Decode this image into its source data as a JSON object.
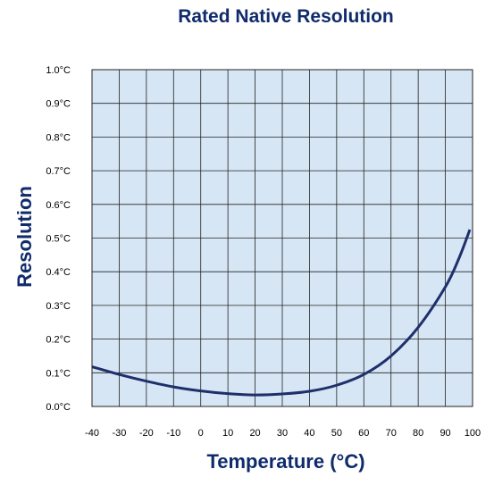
{
  "chart_data": {
    "type": "line",
    "title": "Rated Native Resolution",
    "xlabel": "Temperature (°C)",
    "ylabel": "Resolution",
    "xlim": [
      -40,
      100
    ],
    "ylim": [
      0.0,
      1.0
    ],
    "x_ticks": [
      -40,
      -30,
      -20,
      -10,
      0,
      10,
      20,
      30,
      40,
      50,
      60,
      70,
      80,
      90,
      100
    ],
    "x_tick_labels": [
      "-40",
      "-30",
      "-20",
      "-10",
      "0",
      "10",
      "20",
      "30",
      "40",
      "50",
      "60",
      "70",
      "80",
      "90",
      "100"
    ],
    "y_ticks": [
      0.0,
      0.1,
      0.2,
      0.3,
      0.4,
      0.5,
      0.6,
      0.7,
      0.8,
      0.9,
      1.0
    ],
    "y_tick_labels": [
      "0.0°C",
      "0.1°C",
      "0.2°C",
      "0.3°C",
      "0.4°C",
      "0.5°C",
      "0.6°C",
      "0.7°C",
      "0.8°C",
      "0.9°C",
      "1.0°C"
    ],
    "grid": true,
    "series": [
      {
        "x": [
          -40,
          -30,
          -20,
          -10,
          0,
          10,
          20,
          30,
          40,
          50,
          60,
          70,
          80,
          90,
          95,
          99
        ],
        "y": [
          0.118,
          0.095,
          0.075,
          0.058,
          0.046,
          0.038,
          0.034,
          0.037,
          0.045,
          0.063,
          0.095,
          0.15,
          0.235,
          0.355,
          0.44,
          0.525
        ]
      }
    ],
    "colors": {
      "plot_background": "#d6e6f5",
      "grid": "#222222",
      "line": "#1f2f6b",
      "title": "#0f2b6b"
    }
  }
}
